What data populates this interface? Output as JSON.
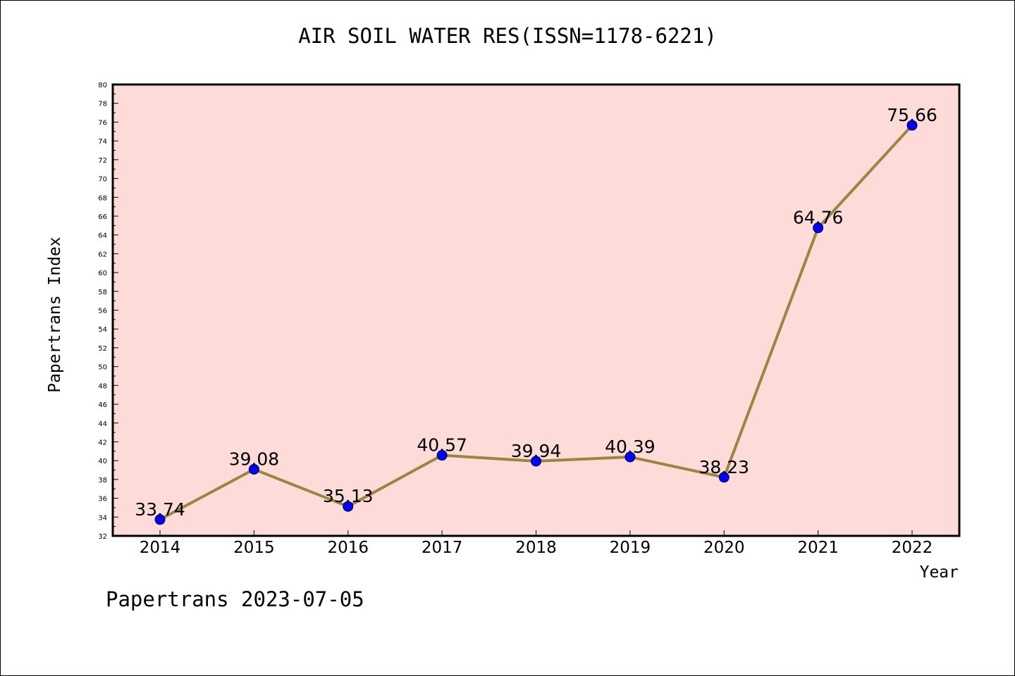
{
  "chart_data": {
    "type": "line",
    "title": "AIR SOIL WATER RES(ISSN=1178-6221)",
    "xlabel": "Year",
    "ylabel": "Papertrans Index",
    "categories": [
      "2014",
      "2015",
      "2016",
      "2017",
      "2018",
      "2019",
      "2020",
      "2021",
      "2022"
    ],
    "values": [
      33.74,
      39.08,
      35.13,
      40.57,
      39.94,
      40.39,
      38.23,
      64.76,
      75.66
    ],
    "value_labels": [
      "33.74",
      "39.08",
      "35.13",
      "40.57",
      "39.94",
      "40.39",
      "38.23",
      "64.76",
      "75.66"
    ],
    "ylim": [
      32,
      80
    ],
    "y_major_step": 2,
    "grid": false,
    "colors": {
      "plot_background": "#fddbd8",
      "line": "#9c8540",
      "marker": "#0000ff"
    }
  },
  "footer": "Papertrans 2023-07-05"
}
